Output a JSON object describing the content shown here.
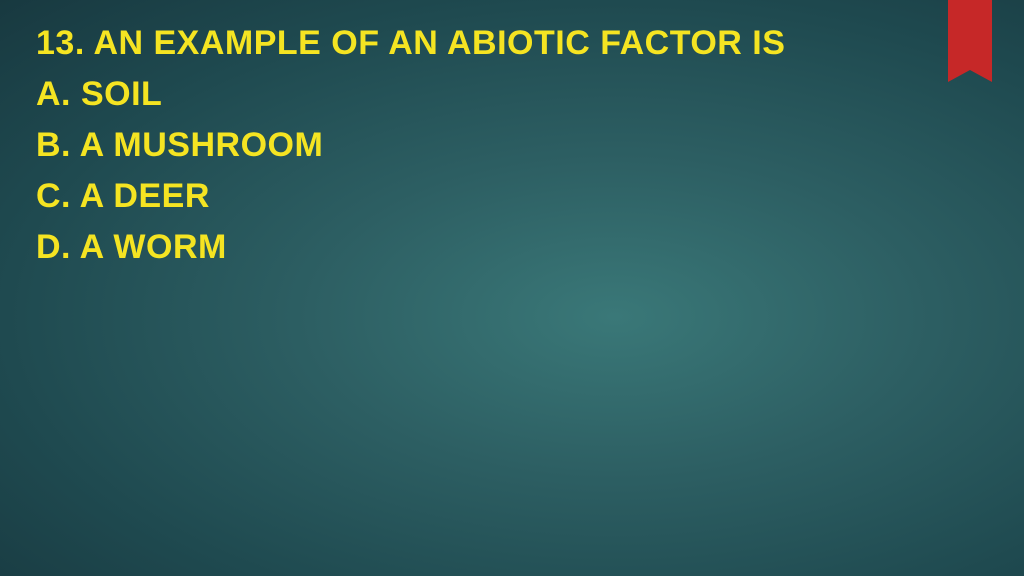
{
  "slide": {
    "question": "13. AN EXAMPLE OF AN ABIOTIC FACTOR IS",
    "options": {
      "a": "A.  SOIL",
      "b": "B.  A MUSHROOM",
      "c": "C. A DEER",
      "d": "D. A WORM"
    },
    "colors": {
      "text": "#f5e422",
      "ribbon": "#c62828",
      "bg_center": "#3a7878",
      "bg_outer": "#183940"
    },
    "typography": {
      "font_family": "Century Gothic",
      "font_size_pt": 26,
      "font_weight": "bold"
    }
  }
}
